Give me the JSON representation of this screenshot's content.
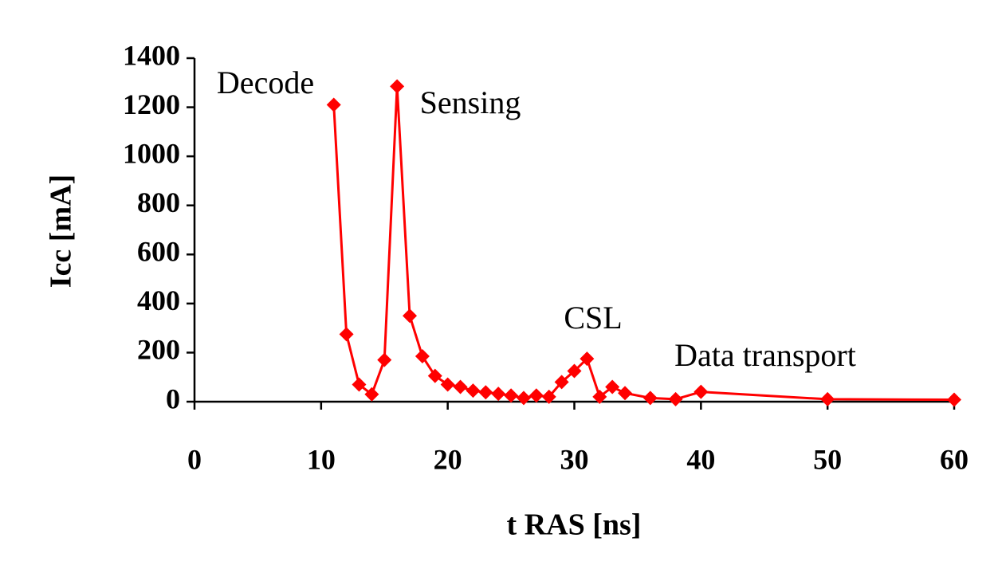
{
  "chart_data": {
    "type": "line",
    "xlabel": "t RAS [ns]",
    "ylabel": "Icc [mA]",
    "x": [
      11,
      12,
      13,
      14,
      15,
      16,
      17,
      18,
      19,
      20,
      21,
      22,
      23,
      24,
      25,
      26,
      27,
      28,
      29,
      30,
      31,
      32,
      33,
      34,
      36,
      38,
      40,
      50,
      60
    ],
    "series": [
      {
        "name": "Icc",
        "color": "#ff0000",
        "values": [
          1210,
          275,
          70,
          30,
          170,
          1285,
          350,
          185,
          105,
          70,
          60,
          45,
          38,
          32,
          25,
          15,
          25,
          20,
          80,
          125,
          175,
          20,
          60,
          35,
          15,
          10,
          40,
          10,
          8
        ]
      }
    ],
    "annotations": [
      "Decode",
      "Sensing",
      "CSL",
      "Data transport"
    ],
    "xlim": [
      0,
      60
    ],
    "xticks": [
      0,
      10,
      20,
      30,
      40,
      50,
      60
    ],
    "ylim": [
      0,
      1400
    ],
    "yticks": [
      0,
      200,
      400,
      600,
      800,
      1000,
      1200,
      1400
    ],
    "grid": false
  }
}
